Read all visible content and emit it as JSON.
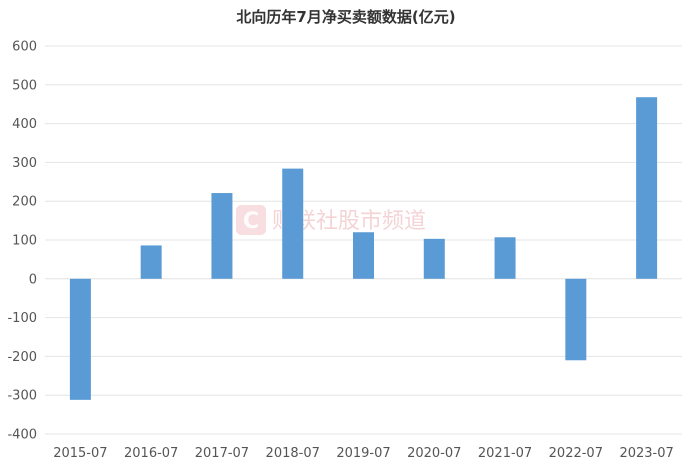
{
  "chart_data": {
    "type": "bar",
    "title": "北向历年7月净买卖额数据(亿元)",
    "categories": [
      "2015-07",
      "2016-07",
      "2017-07",
      "2018-07",
      "2019-07",
      "2020-07",
      "2021-07",
      "2022-07",
      "2023-07"
    ],
    "values": [
      -312,
      86,
      221,
      284,
      120,
      103,
      107,
      -210,
      468
    ],
    "ylim": [
      -400,
      600
    ],
    "yticks": [
      600,
      500,
      400,
      300,
      200,
      100,
      0,
      -100,
      -200,
      -300,
      -400
    ],
    "grid": true,
    "bar_color": "#5b9bd5"
  },
  "watermark": {
    "icon": "c-logo-icon",
    "text": "财联社股市频道",
    "color": "#e8a0a4"
  }
}
